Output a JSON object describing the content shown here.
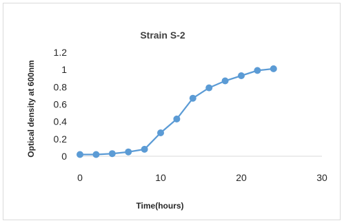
{
  "chart_data": {
    "type": "line",
    "title": "Strain S-2",
    "xlabel": "Time(hours)",
    "ylabel": "Optical density at 600nm",
    "xlim": [
      0,
      30
    ],
    "ylim": [
      0,
      1.2
    ],
    "x_ticks": [
      "0",
      "10",
      "20",
      "30"
    ],
    "y_ticks": [
      "0",
      "0.2",
      "0.4",
      "0.6",
      "0.8",
      "1",
      "1.2"
    ],
    "grid": false,
    "legend": "none",
    "series": [
      {
        "color": "#5b9bd5",
        "x": [
          0,
          2,
          4,
          6,
          8,
          10,
          12,
          14,
          16,
          18,
          20,
          22,
          24
        ],
        "y": [
          0.02,
          0.02,
          0.03,
          0.05,
          0.08,
          0.27,
          0.43,
          0.67,
          0.79,
          0.87,
          0.93,
          0.99,
          1.01
        ]
      }
    ]
  }
}
